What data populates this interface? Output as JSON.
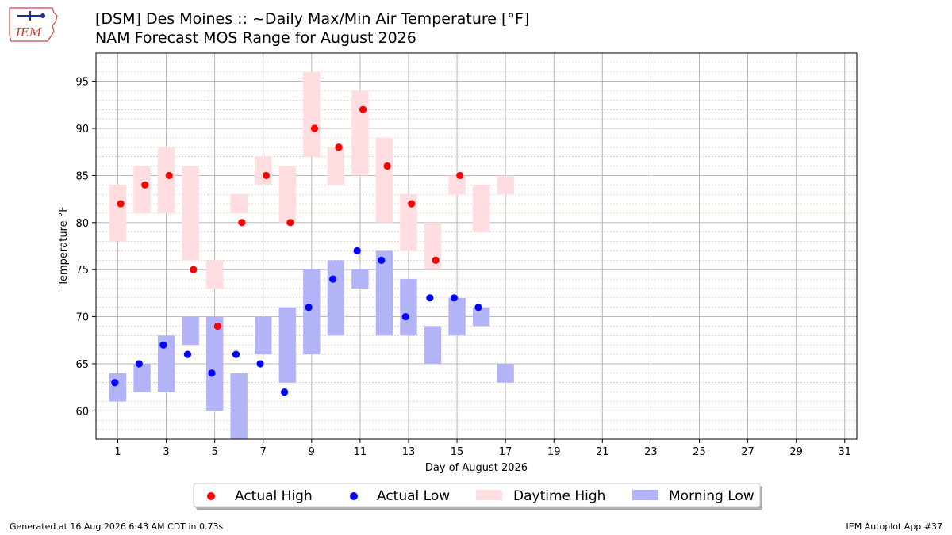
{
  "header": {
    "title_line1": "[DSM] Des Moines :: ~Daily Max/Min Air Temperature [°F]",
    "title_line2": "NAM Forecast MOS Range for August 2026",
    "logo_text": "IEM"
  },
  "footer": {
    "left": "Generated at 16 Aug 2026 6:43 AM CDT in 0.73s",
    "right": "IEM Autoplot App #37"
  },
  "colors": {
    "actual_high": "#ff0000",
    "actual_low": "#0000ff",
    "daytime_high_band": "#ffdde1",
    "morning_low_band": "#b3b3f8",
    "grid": "#b0b0b0",
    "minor_grid": "#e8b89a"
  },
  "chart_data": {
    "type": "scatter",
    "xlabel": "Day of August 2026",
    "ylabel": "Temperature °F",
    "xlim": [
      0.1,
      31.5
    ],
    "ylim": [
      57,
      98
    ],
    "xticks": [
      1,
      3,
      5,
      7,
      9,
      11,
      13,
      15,
      17,
      19,
      21,
      23,
      25,
      27,
      29,
      31
    ],
    "yticks": [
      60,
      65,
      70,
      75,
      80,
      85,
      90,
      95
    ],
    "grid": true,
    "legend_position": "bottom-center",
    "series": [
      {
        "name": "Actual High",
        "kind": "points",
        "x": [
          1,
          2,
          3,
          4,
          5,
          6,
          7,
          8,
          9,
          10,
          11,
          12,
          13,
          14,
          15
        ],
        "y": [
          82,
          84,
          85,
          75,
          69,
          80,
          85,
          80,
          90,
          88,
          92,
          86,
          82,
          76,
          85
        ]
      },
      {
        "name": "Actual Low",
        "kind": "points",
        "x": [
          1,
          2,
          3,
          4,
          5,
          6,
          7,
          8,
          9,
          10,
          11,
          12,
          13,
          14,
          15,
          16
        ],
        "y": [
          63,
          65,
          67,
          66,
          64,
          66,
          65,
          62,
          71,
          74,
          77,
          76,
          70,
          72,
          72,
          71
        ]
      },
      {
        "name": "Daytime High",
        "kind": "range",
        "x": [
          1,
          2,
          3,
          4,
          5,
          6,
          7,
          8,
          9,
          10,
          11,
          12,
          13,
          14,
          15,
          16,
          17
        ],
        "low": [
          78,
          81,
          81,
          76,
          73,
          81,
          84,
          80,
          87,
          84,
          85,
          80,
          77,
          75,
          83,
          79,
          83
        ],
        "high": [
          84,
          86,
          88,
          86,
          76,
          83,
          87,
          86,
          96,
          88,
          94,
          89,
          83,
          80,
          85,
          84,
          85
        ]
      },
      {
        "name": "Morning Low",
        "kind": "range",
        "x": [
          1,
          2,
          3,
          4,
          5,
          6,
          7,
          8,
          9,
          10,
          11,
          12,
          13,
          14,
          15,
          16,
          17
        ],
        "low": [
          61,
          62,
          62,
          67,
          60,
          56,
          66,
          63,
          66,
          68,
          73,
          68,
          68,
          65,
          68,
          69,
          63
        ],
        "high": [
          64,
          65,
          68,
          70,
          70,
          64,
          70,
          71,
          75,
          76,
          75,
          77,
          74,
          69,
          72,
          71,
          65
        ]
      }
    ]
  }
}
